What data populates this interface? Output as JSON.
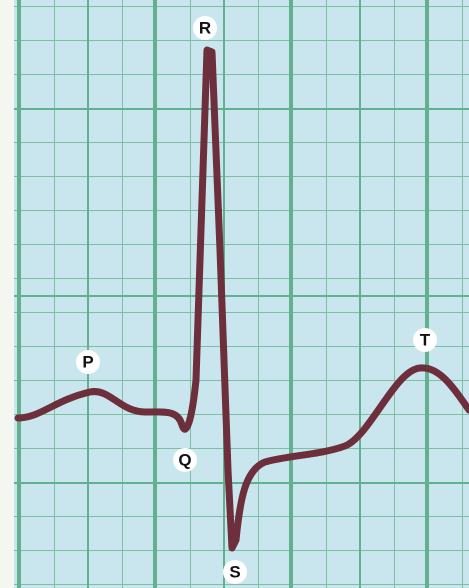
{
  "labels": {
    "r": "R",
    "p": "P",
    "q": "Q",
    "t": "T",
    "s": "S"
  }
}
